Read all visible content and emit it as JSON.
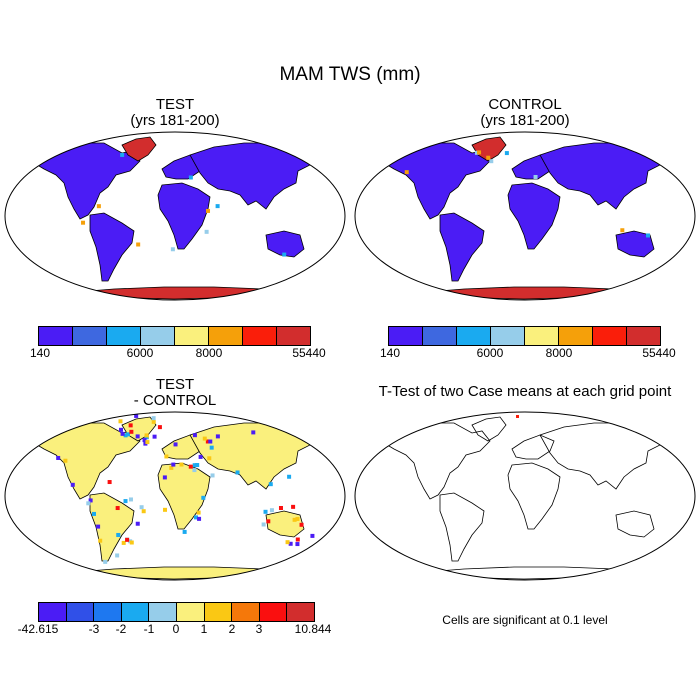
{
  "title": "MAM TWS (mm)",
  "panels": {
    "test": {
      "title": "TEST",
      "subtitle": "(yrs 181-200)"
    },
    "control": {
      "title": "CONTROL",
      "subtitle": "(yrs 181-200)"
    },
    "diff": {
      "title": "TEST",
      "subtitle": "- CONTROL"
    },
    "ttest": {
      "title": "T-Test of two Case means at each grid point",
      "note": "Cells are significant at 0.1 level"
    }
  },
  "colorbar_abs": {
    "colors": [
      "#4b1cf5",
      "#3e68e0",
      "#1aaaf0",
      "#96cdea",
      "#faf07d",
      "#f5a00a",
      "#fa1e0a",
      "#d22d2d"
    ],
    "labels": [
      "140",
      "6000",
      "8000",
      "55440"
    ]
  },
  "colorbar_diff": {
    "colors": [
      "#4b1cf5",
      "#3050e8",
      "#1e78f0",
      "#1aaaf0",
      "#96cdea",
      "#faf07d",
      "#fac814",
      "#f5780a",
      "#fa0f0f",
      "#d22d2d"
    ],
    "labels": [
      "-42.615",
      "-3",
      "-2",
      "-1",
      "0",
      "1",
      "2",
      "3",
      "10.844"
    ]
  },
  "colors": {
    "land_main": "#4b1cf5",
    "land_diff": "#faf07d",
    "ice": "#d22d2d",
    "outline": "#000000"
  }
}
